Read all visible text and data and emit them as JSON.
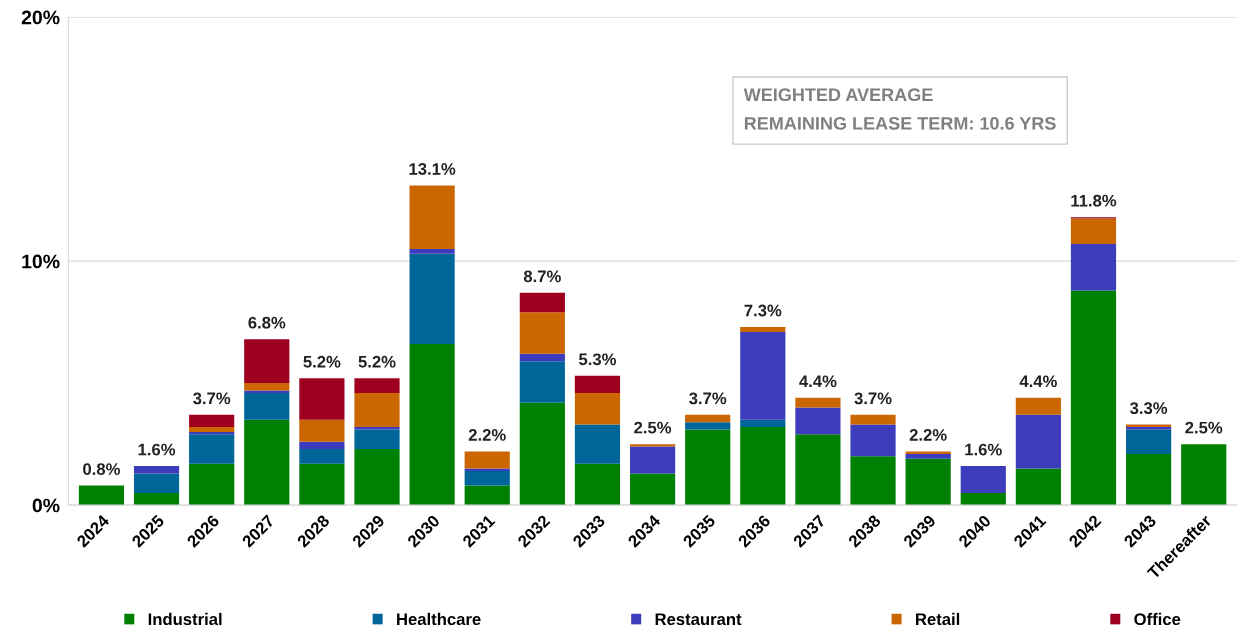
{
  "chart_data": {
    "type": "bar",
    "stacked": true,
    "categories": [
      "2024",
      "2025",
      "2026",
      "2027",
      "2028",
      "2029",
      "2030",
      "2031",
      "2032",
      "2033",
      "2034",
      "2035",
      "2036",
      "2037",
      "2038",
      "2039",
      "2040",
      "2041",
      "2042",
      "2043",
      "Thereafter"
    ],
    "series": [
      {
        "name": "Industrial",
        "color": "#008000",
        "values": [
          0.8,
          0.5,
          1.7,
          3.5,
          1.7,
          2.3,
          6.6,
          0.8,
          4.2,
          1.7,
          1.3,
          3.1,
          3.2,
          2.9,
          2.0,
          1.9,
          0.5,
          1.5,
          8.8,
          2.1,
          2.5
        ]
      },
      {
        "name": "Healthcare",
        "color": "#006699",
        "values": [
          0,
          0.8,
          1.2,
          1.1,
          0.6,
          0.8,
          3.7,
          0.6,
          1.7,
          1.6,
          0,
          0.3,
          0.3,
          0,
          0,
          0,
          0,
          0,
          0,
          1.0,
          0
        ]
      },
      {
        "name": "Restaurant",
        "color": "#3c3cbc",
        "values": [
          0,
          0.3,
          0.1,
          0.1,
          0.3,
          0.1,
          0.2,
          0.1,
          0.3,
          0,
          1.1,
          0,
          3.6,
          1.1,
          1.3,
          0.2,
          1.1,
          2.2,
          1.9,
          0.1,
          0
        ]
      },
      {
        "name": "Retail",
        "color": "#cc6600",
        "values": [
          0,
          0,
          0.2,
          0.3,
          0.9,
          1.4,
          2.6,
          0.7,
          1.7,
          1.3,
          0.1,
          0.3,
          0.2,
          0.4,
          0.4,
          0.1,
          0,
          0.7,
          1.05,
          0.1,
          0
        ]
      },
      {
        "name": "Office",
        "color": "#a00020",
        "values": [
          0,
          0,
          0.5,
          1.8,
          1.7,
          0.6,
          0,
          0,
          0.8,
          0.7,
          0,
          0,
          0,
          0,
          0,
          0,
          0,
          0,
          0.05,
          0,
          0
        ]
      }
    ],
    "totals": [
      "0.8%",
      "1.6%",
      "3.7%",
      "6.8%",
      "5.2%",
      "5.2%",
      "13.1%",
      "2.2%",
      "8.7%",
      "5.3%",
      "2.5%",
      "3.7%",
      "7.3%",
      "4.4%",
      "3.7%",
      "2.2%",
      "1.6%",
      "4.4%",
      "11.8%",
      "3.3%",
      "2.5%"
    ],
    "ylim": [
      0,
      20
    ],
    "yticks": [
      {
        "value": 0,
        "label": "0%"
      },
      {
        "value": 10,
        "label": "10%"
      },
      {
        "value": 20,
        "label": "20%"
      }
    ],
    "grid": "y",
    "legend": "bottom",
    "annotations": [
      "WEIGHTED AVERAGE\nREMAINING LEASE TERM: 10.6 YRS"
    ]
  }
}
